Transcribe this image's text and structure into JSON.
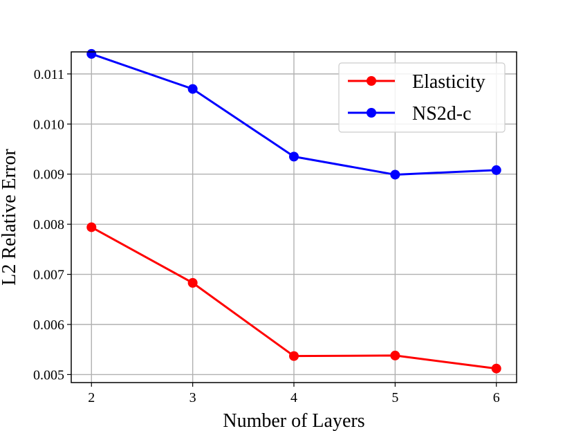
{
  "chart_data": {
    "type": "line",
    "xlabel": "Number of Layers",
    "ylabel": "L2 Relative Error",
    "x": [
      2,
      3,
      4,
      5,
      6
    ],
    "xticks": [
      "2",
      "3",
      "4",
      "5",
      "6"
    ],
    "yticks": [
      "0.005",
      "0.006",
      "0.007",
      "0.008",
      "0.009",
      "0.010",
      "0.011"
    ],
    "xlim": [
      1.8,
      6.2
    ],
    "ylim": [
      0.00484,
      0.01144
    ],
    "grid": true,
    "legend_position": "top-right",
    "series": [
      {
        "name": "Elasticity",
        "color": "#ff0000",
        "values": [
          0.00794,
          0.00683,
          0.00537,
          0.00538,
          0.00512
        ]
      },
      {
        "name": "NS2d-c",
        "color": "#0000ff",
        "values": [
          0.0114,
          0.0107,
          0.00935,
          0.00899,
          0.00908
        ]
      }
    ]
  }
}
